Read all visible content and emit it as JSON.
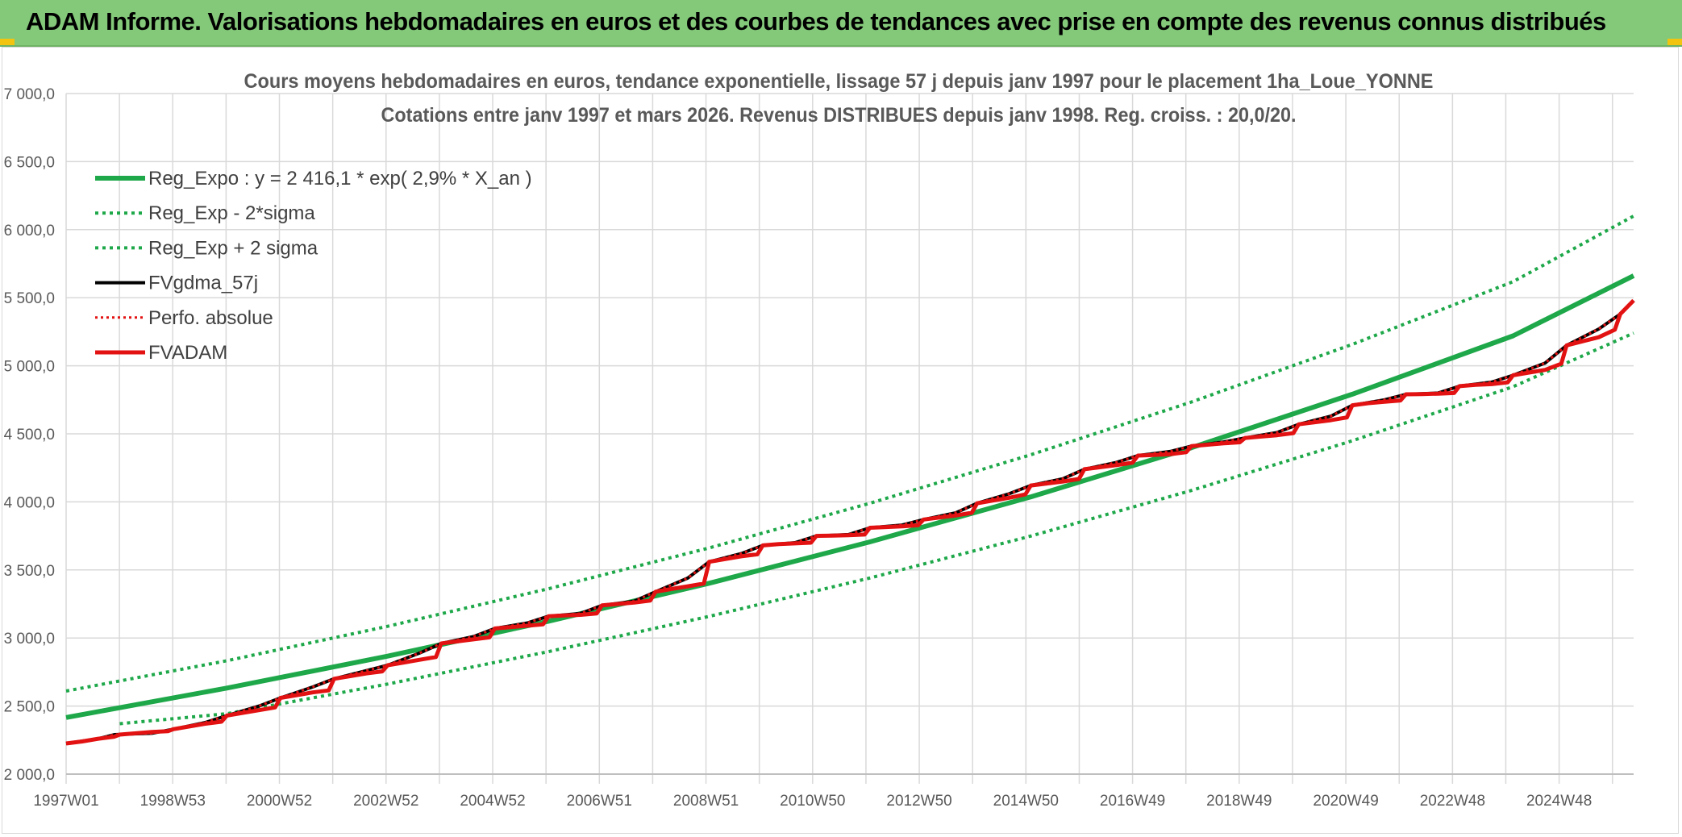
{
  "header": {
    "title": "ADAM Informe. Valorisations hebdomadaires en euros et des courbes de tendances avec prise en compte des revenus connus distribués"
  },
  "chart_data": {
    "type": "line",
    "title": "Cours moyens hebdomadaires en euros, tendance exponentielle, lissage 57 j depuis janv 1997 pour le placement 1ha_Loue_YONNE",
    "subtitle": "Cotations entre janv 1997 et mars 2026. Revenus DISTRIBUES depuis janv 1998. Reg. croiss. : 20,0/20.",
    "xlabel": "",
    "ylabel": "",
    "ylim": [
      2000,
      7000
    ],
    "xlim": [
      1997.0,
      2026.25
    ],
    "grid": true,
    "legend_position": "top-left",
    "y_ticks": [
      "2 000,0",
      "2 500,0",
      "3 000,0",
      "3 500,0",
      "4 000,0",
      "4 500,0",
      "5 000,0",
      "5 500,0",
      "6 000,0",
      "6 500,0",
      "7 000,0"
    ],
    "x_ticks": [
      "1997W01",
      "1998W53",
      "2000W52",
      "2002W52",
      "2004W52",
      "2006W51",
      "2008W51",
      "2010W50",
      "2012W50",
      "2014W50",
      "2016W49",
      "2018W49",
      "2020W49",
      "2022W48",
      "2024W48"
    ],
    "colors": {
      "green": "#1ea84a",
      "black": "#000000",
      "red": "#e31212",
      "grid": "#d9d9d9"
    },
    "series": [
      {
        "name": "Reg_Expo : y = 2 416,1 * exp( 2,9% *  X_an )",
        "style": "solid-green",
        "x": [
          1997,
          2000,
          2003,
          2006,
          2009,
          2012,
          2015,
          2018,
          2021,
          2024,
          2026.25
        ],
        "y": [
          2416,
          2632,
          2867,
          3123,
          3402,
          3706,
          4037,
          4398,
          4791,
          5220,
          5662
        ]
      },
      {
        "name": "Reg_Exp - 2*sigma",
        "style": "dotted-green",
        "x": [
          1998,
          2000,
          2003,
          2006,
          2009,
          2012,
          2015,
          2018,
          2021,
          2024,
          2026.25
        ],
        "y": [
          2370,
          2444,
          2662,
          2900,
          3159,
          3441,
          3749,
          4084,
          4449,
          4846,
          5240
        ]
      },
      {
        "name": "Reg_Exp + 2 sigma",
        "style": "dotted-green",
        "x": [
          1997,
          2000,
          2003,
          2006,
          2009,
          2012,
          2015,
          2018,
          2021,
          2024,
          2026.25
        ],
        "y": [
          2610,
          2833,
          3086,
          3362,
          3662,
          3990,
          4346,
          4734,
          5157,
          5618,
          6100
        ]
      },
      {
        "name": "FVgdma_57j",
        "style": "solid-black",
        "x": [
          1997.0,
          1997.6,
          1997.9,
          1998.6,
          1999.0,
          1999.6,
          2000.0,
          2000.6,
          2001.0,
          2001.6,
          2002.0,
          2002.6,
          2003.0,
          2003.6,
          2004.0,
          2004.6,
          2005.0,
          2005.6,
          2006.0,
          2006.6,
          2007.0,
          2007.6,
          2008.0,
          2008.6,
          2009.0,
          2009.6,
          2010.0,
          2010.6,
          2011.0,
          2011.6,
          2012.0,
          2012.6,
          2013.0,
          2013.6,
          2014.0,
          2014.6,
          2015.0,
          2015.6,
          2016.0,
          2016.6,
          2017.0,
          2017.6,
          2018.0,
          2018.6,
          2019.0,
          2019.6,
          2020.0,
          2020.6,
          2021.0,
          2021.6,
          2022.0,
          2022.6,
          2023.0,
          2023.6,
          2024.0,
          2024.6,
          2025.0,
          2025.6,
          2026.0,
          2026.25
        ],
        "y": [
          2225,
          2260,
          2290,
          2300,
          2330,
          2380,
          2430,
          2500,
          2560,
          2640,
          2700,
          2760,
          2800,
          2890,
          2960,
          3010,
          3070,
          3110,
          3160,
          3180,
          3240,
          3270,
          3340,
          3440,
          3560,
          3620,
          3680,
          3700,
          3750,
          3760,
          3810,
          3830,
          3870,
          3920,
          3990,
          4060,
          4120,
          4170,
          4240,
          4290,
          4340,
          4370,
          4410,
          4440,
          4470,
          4510,
          4570,
          4630,
          4710,
          4750,
          4790,
          4800,
          4850,
          4880,
          4930,
          5020,
          5150,
          5270,
          5380,
          5480
        ]
      },
      {
        "name": "Perfo. absolue",
        "style": "dotted-red",
        "x": [
          1997.0,
          1997.6,
          1997.9,
          1998.6,
          1999.0,
          1999.6,
          2000.0,
          2000.6,
          2001.0,
          2001.6,
          2002.0,
          2002.6,
          2003.0,
          2003.6,
          2004.0,
          2004.6,
          2005.0,
          2005.6,
          2006.0,
          2006.6,
          2007.0,
          2007.6,
          2008.0,
          2008.6,
          2009.0,
          2009.6,
          2010.0,
          2010.6,
          2011.0,
          2011.6,
          2012.0,
          2012.6,
          2013.0,
          2013.6,
          2014.0,
          2014.6,
          2015.0,
          2015.6,
          2016.0,
          2016.6,
          2017.0,
          2017.6,
          2018.0,
          2018.6,
          2019.0,
          2019.6,
          2020.0,
          2020.6,
          2021.0,
          2021.6,
          2022.0,
          2022.6,
          2023.0,
          2023.6,
          2024.0,
          2024.6,
          2025.0,
          2025.6,
          2026.0,
          2026.25
        ],
        "y": [
          2225,
          2260,
          2290,
          2300,
          2330,
          2380,
          2430,
          2500,
          2560,
          2640,
          2700,
          2760,
          2800,
          2890,
          2960,
          3010,
          3070,
          3110,
          3160,
          3180,
          3240,
          3270,
          3340,
          3440,
          3560,
          3620,
          3680,
          3700,
          3750,
          3760,
          3810,
          3830,
          3870,
          3920,
          3990,
          4060,
          4120,
          4170,
          4240,
          4290,
          4340,
          4370,
          4410,
          4440,
          4470,
          4510,
          4570,
          4630,
          4710,
          4750,
          4790,
          4800,
          4850,
          4880,
          4930,
          5020,
          5150,
          5270,
          5380,
          5480
        ]
      },
      {
        "name": "FVADAM",
        "style": "solid-red",
        "x": [
          1997.0,
          1997.3,
          1997.6,
          1997.9,
          1998.0,
          1998.3,
          1998.6,
          1998.9,
          1999.0,
          1999.3,
          1999.6,
          1999.9,
          2000.0,
          2000.3,
          2000.6,
          2000.9,
          2001.0,
          2001.3,
          2001.6,
          2001.9,
          2002.0,
          2002.3,
          2002.6,
          2002.9,
          2003.0,
          2003.3,
          2003.6,
          2003.9,
          2004.0,
          2004.3,
          2004.6,
          2004.9,
          2005.0,
          2005.3,
          2005.6,
          2005.9,
          2006.0,
          2006.3,
          2006.6,
          2006.9,
          2007.0,
          2007.3,
          2007.6,
          2007.9,
          2008.0,
          2008.3,
          2008.6,
          2008.9,
          2009.0,
          2009.3,
          2009.6,
          2009.9,
          2010.0,
          2010.3,
          2010.6,
          2010.9,
          2011.0,
          2011.3,
          2011.6,
          2011.9,
          2012.0,
          2012.3,
          2012.6,
          2012.9,
          2013.0,
          2013.3,
          2013.6,
          2013.9,
          2014.0,
          2014.3,
          2014.6,
          2014.9,
          2015.0,
          2015.3,
          2015.6,
          2015.9,
          2016.0,
          2016.3,
          2016.6,
          2016.9,
          2017.0,
          2017.3,
          2017.6,
          2017.9,
          2018.0,
          2018.3,
          2018.6,
          2018.9,
          2019.0,
          2019.3,
          2019.6,
          2019.9,
          2020.0,
          2020.3,
          2020.6,
          2020.9,
          2021.0,
          2021.3,
          2021.6,
          2021.9,
          2022.0,
          2022.3,
          2022.6,
          2022.9,
          2023.0,
          2023.3,
          2023.6,
          2023.9,
          2024.0,
          2024.3,
          2024.6,
          2024.9,
          2025.0,
          2025.3,
          2025.6,
          2025.9,
          2026.0,
          2026.25
        ],
        "y": [
          2225,
          2240,
          2260,
          2275,
          2290,
          2300,
          2310,
          2315,
          2330,
          2350,
          2370,
          2385,
          2430,
          2450,
          2470,
          2490,
          2560,
          2580,
          2600,
          2615,
          2700,
          2720,
          2740,
          2755,
          2800,
          2820,
          2840,
          2860,
          2960,
          2975,
          2990,
          3005,
          3070,
          3080,
          3090,
          3100,
          3160,
          3165,
          3170,
          3180,
          3240,
          3250,
          3260,
          3275,
          3340,
          3360,
          3380,
          3400,
          3560,
          3580,
          3600,
          3615,
          3680,
          3690,
          3695,
          3700,
          3750,
          3752,
          3755,
          3760,
          3810,
          3815,
          3820,
          3828,
          3870,
          3885,
          3900,
          3920,
          3990,
          4010,
          4030,
          4055,
          4120,
          4135,
          4150,
          4168,
          4240,
          4255,
          4270,
          4288,
          4340,
          4345,
          4350,
          4365,
          4410,
          4420,
          4430,
          4438,
          4470,
          4480,
          4490,
          4505,
          4570,
          4585,
          4600,
          4620,
          4710,
          4725,
          4735,
          4745,
          4790,
          4792,
          4795,
          4800,
          4850,
          4860,
          4865,
          4878,
          4930,
          4950,
          4970,
          5015,
          5150,
          5180,
          5210,
          5265,
          5380,
          5480
        ]
      }
    ]
  }
}
